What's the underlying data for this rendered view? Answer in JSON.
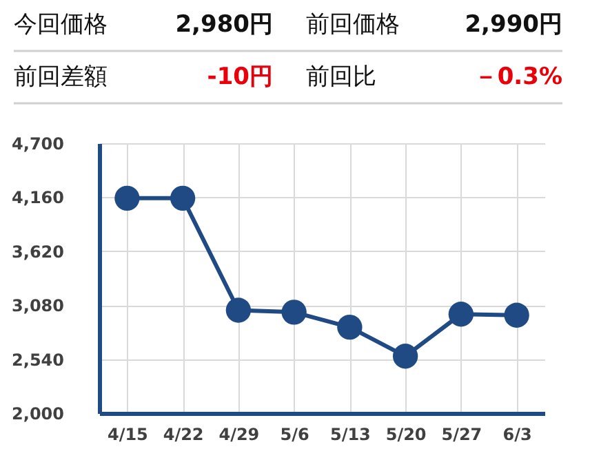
{
  "chart_data": {
    "type": "line",
    "annotations": [
      "今回価格",
      "2,980円",
      "前回価格",
      "2,990円",
      "前回差額",
      "-10円",
      "前回比",
      "－0.3%"
    ],
    "categories": [
      "4/15",
      "4/22",
      "4/29",
      "5/6",
      "5/13",
      "5/20",
      "5/27",
      "6/3"
    ],
    "series": [
      {
        "color": "#1f4a84",
        "values": [
          4150,
          4150,
          3030,
          3010,
          2860,
          2570,
          2990,
          2980
        ]
      }
    ],
    "ylim": [
      2000,
      4700
    ],
    "yticks": [
      {
        "value": 2000,
        "label": "2,000"
      },
      {
        "value": 2540,
        "label": "2,540"
      },
      {
        "value": 3080,
        "label": "3,080"
      },
      {
        "value": 3620,
        "label": "3,620"
      },
      {
        "value": 4160,
        "label": "4,160"
      },
      {
        "value": 4700,
        "label": "4,700"
      }
    ],
    "grid": true,
    "marker": "circle",
    "line_style": "solid"
  }
}
